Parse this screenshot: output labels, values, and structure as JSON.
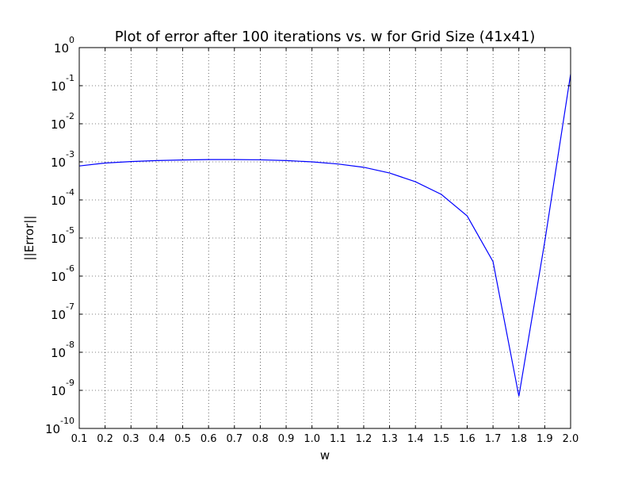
{
  "chart_data": {
    "type": "line",
    "title": "Plot of error after 100 iterations vs. w for Grid Size (41x41)",
    "xlabel": "w",
    "ylabel": "||Error||",
    "xlim": [
      0.1,
      2.0
    ],
    "ylim": [
      1e-10,
      1
    ],
    "yscale": "log",
    "grid": true,
    "x_ticks": [
      "0.1",
      "0.2",
      "0.3",
      "0.4",
      "0.5",
      "0.6",
      "0.7",
      "0.8",
      "0.9",
      "1.0",
      "1.1",
      "1.2",
      "1.3",
      "1.4",
      "1.5",
      "1.6",
      "1.7",
      "1.8",
      "1.9",
      "2.0"
    ],
    "y_ticks": [
      {
        "base": "10",
        "exp": "0",
        "value": 1
      },
      {
        "base": "10",
        "exp": "-1",
        "value": 0.1
      },
      {
        "base": "10",
        "exp": "-2",
        "value": 0.01
      },
      {
        "base": "10",
        "exp": "-3",
        "value": 0.001
      },
      {
        "base": "10",
        "exp": "-4",
        "value": 0.0001
      },
      {
        "base": "10",
        "exp": "-5",
        "value": 1e-05
      },
      {
        "base": "10",
        "exp": "-6",
        "value": 1e-06
      },
      {
        "base": "10",
        "exp": "-7",
        "value": 1e-07
      },
      {
        "base": "10",
        "exp": "-8",
        "value": 1e-08
      },
      {
        "base": "10",
        "exp": "-9",
        "value": 1e-09
      },
      {
        "base": "10",
        "exp": "-10",
        "value": 1e-10
      }
    ],
    "series": [
      {
        "color": "#0000ff",
        "x": [
          0.1,
          0.2,
          0.3,
          0.4,
          0.5,
          0.6,
          0.7,
          0.8,
          0.9,
          1.0,
          1.1,
          1.2,
          1.3,
          1.4,
          1.5,
          1.6,
          1.7,
          1.8,
          1.9,
          2.0
        ],
        "y": [
          0.00078,
          0.00093,
          0.00102,
          0.00108,
          0.00112,
          0.00115,
          0.00115,
          0.00113,
          0.00108,
          0.001,
          0.00088,
          0.00072,
          0.00051,
          0.0003,
          0.00014,
          3.8e-05,
          2.4e-06,
          7e-10,
          8e-06,
          0.2
        ]
      }
    ]
  }
}
